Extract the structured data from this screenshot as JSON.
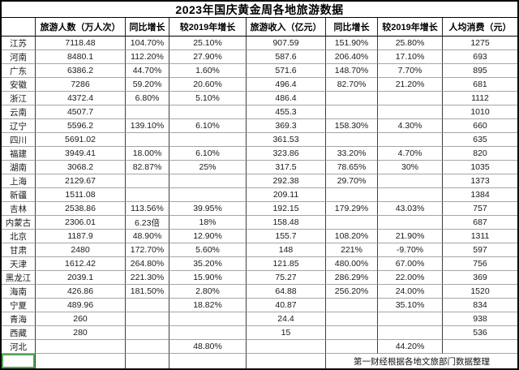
{
  "title": "2023年国庆黄金周各地旅游数据",
  "table": {
    "headers": [
      "",
      "旅游人数（万人次）",
      "同比增长",
      "较2019年增长",
      "旅游收入（亿元）",
      "同比增长",
      "较2019年增长",
      "人均消费（元）"
    ],
    "rows": [
      [
        "江苏",
        "7118.48",
        "104.70%",
        "25.10%",
        "907.59",
        "151.90%",
        "25.80%",
        "1275"
      ],
      [
        "河南",
        "8480.1",
        "112.20%",
        "27.90%",
        "587.6",
        "206.40%",
        "17.10%",
        "693"
      ],
      [
        "广东",
        "6386.2",
        "44.70%",
        "1.60%",
        "571.6",
        "148.70%",
        "7.70%",
        "895"
      ],
      [
        "安徽",
        "7286",
        "59.20%",
        "20.60%",
        "496.4",
        "82.70%",
        "21.20%",
        "681"
      ],
      [
        "浙江",
        "4372.4",
        "6.80%",
        "5.10%",
        "486.4",
        "",
        "",
        "1112"
      ],
      [
        "云南",
        "4507.7",
        "",
        "",
        "455.3",
        "",
        "",
        "1010"
      ],
      [
        "辽宁",
        "5596.2",
        "139.10%",
        "6.10%",
        "369.3",
        "158.30%",
        "4.30%",
        "660"
      ],
      [
        "四川",
        "5691.02",
        "",
        "",
        "361.53",
        "",
        "",
        "635"
      ],
      [
        "福建",
        "3949.41",
        "18.00%",
        "6.10%",
        "323.86",
        "33.20%",
        "4.70%",
        "820"
      ],
      [
        "湖南",
        "3068.2",
        "82.87%",
        "25%",
        "317.5",
        "78.65%",
        "30%",
        "1035"
      ],
      [
        "上海",
        "2129.67",
        "",
        "",
        "292.38",
        "29.70%",
        "",
        "1373"
      ],
      [
        "新疆",
        "1511.08",
        "",
        "",
        "209.11",
        "",
        "",
        "1384"
      ],
      [
        "吉林",
        "2538.86",
        "113.56%",
        "39.95%",
        "192.15",
        "179.29%",
        "43.03%",
        "757"
      ],
      [
        "内蒙古",
        "2306.01",
        "6.23倍",
        "18%",
        "158.48",
        "",
        "",
        "687"
      ],
      [
        "北京",
        "1187.9",
        "48.90%",
        "12.90%",
        "155.7",
        "108.20%",
        "21.90%",
        "1311"
      ],
      [
        "甘肃",
        "2480",
        "172.70%",
        "5.60%",
        "148",
        "221%",
        "-9.70%",
        "597"
      ],
      [
        "天津",
        "1612.42",
        "264.80%",
        "35.20%",
        "121.85",
        "480.00%",
        "67.00%",
        "756"
      ],
      [
        "黑龙江",
        "2039.1",
        "221.30%",
        "15.90%",
        "75.27",
        "286.29%",
        "22.00%",
        "369"
      ],
      [
        "海南",
        "426.86",
        "181.50%",
        "2.80%",
        "64.88",
        "256.20%",
        "24.00%",
        "1520"
      ],
      [
        "宁夏",
        "489.96",
        "",
        "18.82%",
        "40.87",
        "",
        "35.10%",
        "834"
      ],
      [
        "青海",
        "260",
        "",
        "",
        "24.4",
        "",
        "",
        "938"
      ],
      [
        "西藏",
        "280",
        "",
        "",
        "15",
        "",
        "",
        "536"
      ],
      [
        "河北",
        "",
        "",
        "48.80%",
        "",
        "",
        "44.20%",
        ""
      ]
    ]
  },
  "footer": {
    "source_note": "第一财经根据各地文旅部门数据整理"
  },
  "colors": {
    "selection_green": "#55a455",
    "grid_horizontal": "#a6a6a6",
    "grid_vertical": "#3f3f3f",
    "border": "#000000"
  }
}
